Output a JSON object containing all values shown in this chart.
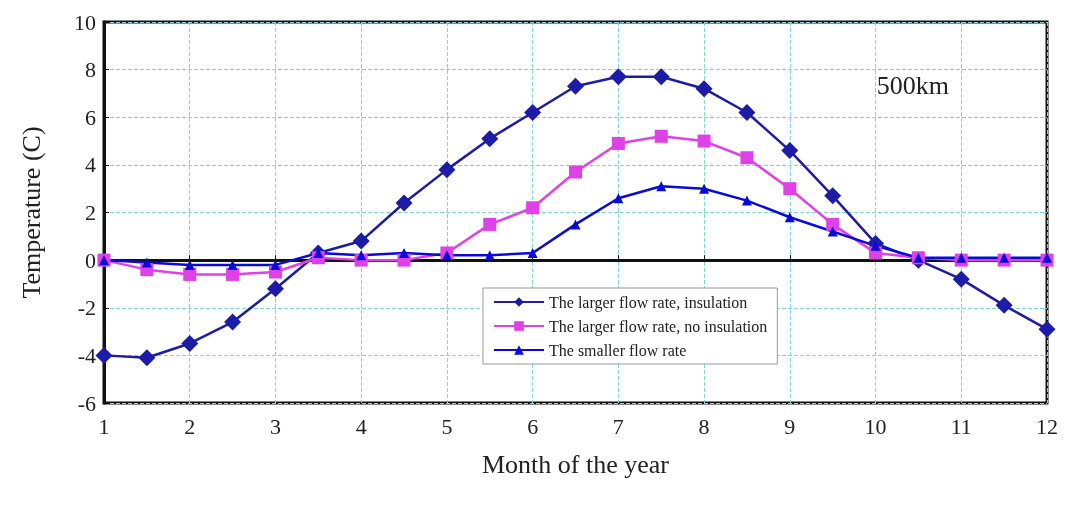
{
  "chart_data": {
    "type": "line",
    "xlabel": "Month of the year",
    "ylabel": "Temperature (C)",
    "annotations": [
      "500km"
    ],
    "x": [
      1,
      1.5,
      2,
      2.5,
      3,
      3.5,
      4,
      4.5,
      5,
      5.5,
      6,
      6.5,
      7,
      7.5,
      8,
      8.5,
      9,
      9.5,
      10,
      10.5,
      11,
      11.5,
      12
    ],
    "series": [
      {
        "name": "The larger flow rate, insulation",
        "color": "#1c1ca8",
        "marker": "diamond",
        "values": [
          -4.0,
          -4.1,
          -3.5,
          -2.6,
          -1.2,
          0.3,
          0.8,
          2.4,
          3.8,
          5.1,
          6.2,
          7.3,
          7.7,
          7.7,
          7.2,
          6.2,
          4.6,
          2.7,
          0.7,
          0.0,
          -0.8,
          -1.9,
          -2.9
        ]
      },
      {
        "name": "The larger flow rate, no insulation",
        "color": "#e040e8",
        "marker": "square",
        "values": [
          0,
          -0.4,
          -0.6,
          -0.6,
          -0.5,
          0.1,
          0,
          0,
          0.3,
          1.5,
          2.2,
          3.7,
          4.9,
          5.2,
          5.0,
          4.3,
          3.0,
          1.5,
          0.3,
          0.1,
          0,
          0,
          0
        ]
      },
      {
        "name": "The smaller flow rate",
        "color": "#0a0ad8",
        "marker": "triangle",
        "values": [
          0,
          -0.1,
          -0.2,
          -0.2,
          -0.2,
          0.3,
          0.2,
          0.3,
          0.2,
          0.2,
          0.3,
          1.5,
          2.6,
          3.1,
          3.0,
          2.5,
          1.8,
          1.2,
          0.6,
          0.1,
          0.1,
          0.1,
          0.1
        ]
      }
    ],
    "xlim": [
      1,
      12
    ],
    "xticks": [
      1,
      2,
      3,
      4,
      5,
      6,
      7,
      8,
      9,
      10,
      11,
      12
    ],
    "ylim": [
      -6,
      10
    ],
    "yticks": [
      -6,
      -4,
      -2,
      0,
      2,
      4,
      6,
      8,
      10
    ],
    "grid": true,
    "legend": "bottom",
    "line_style": "solid"
  }
}
